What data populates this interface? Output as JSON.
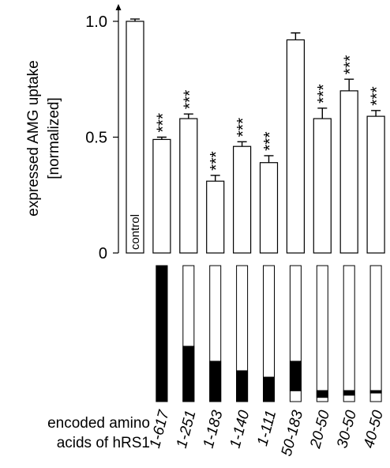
{
  "chart_data": {
    "type": "bar",
    "y_label": [
      "expressed AMG uptake",
      "[normalized]"
    ],
    "schematic_label": [
      "encoded amino",
      "acids of hRS1"
    ],
    "categories": [
      "control",
      "1-617",
      "1-251",
      "1-183",
      "1-140",
      "1-111",
      "50-183",
      "20-50",
      "30-50",
      "40-50"
    ],
    "values": [
      1.0,
      0.49,
      0.58,
      0.31,
      0.46,
      0.39,
      0.92,
      0.58,
      0.7,
      0.59
    ],
    "errors": [
      0.01,
      0.01,
      0.02,
      0.025,
      0.02,
      0.03,
      0.03,
      0.045,
      0.05,
      0.025
    ],
    "significance": [
      null,
      "***",
      "***",
      "***",
      "***",
      "***",
      null,
      "***",
      "***",
      "***"
    ],
    "color": "#ffffff",
    "ylim": [
      0,
      1.075
    ],
    "yticks": [
      0,
      0.5,
      {
        "value": 1,
        "label": "1.0"
      }
    ]
  }
}
